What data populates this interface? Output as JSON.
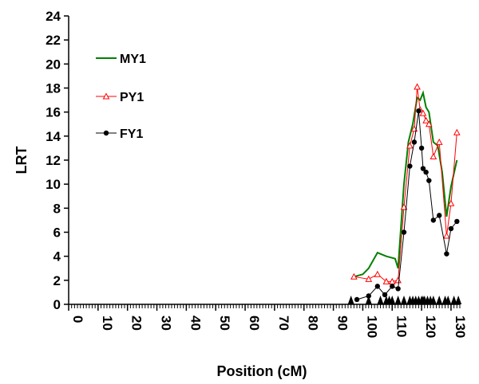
{
  "chart_data": {
    "type": "line",
    "title": "",
    "xlabel": "Position (cM)",
    "ylabel": "LRT",
    "xlim": [
      0,
      133
    ],
    "ylim": [
      0,
      24
    ],
    "x_ticks": [
      0,
      10,
      20,
      30,
      40,
      50,
      60,
      70,
      80,
      90,
      100,
      110,
      120,
      130
    ],
    "y_ticks": [
      0,
      2,
      4,
      6,
      8,
      10,
      12,
      14,
      16,
      18,
      20,
      22,
      24
    ],
    "grid": false,
    "legend_position": "upper-left",
    "series": [
      {
        "name": "MY1",
        "color": "#008000",
        "marker": "none",
        "x": [
          97,
          100,
          102,
          105,
          108,
          111,
          112,
          114,
          115.5,
          117,
          118.5,
          119.5,
          120.5,
          121.5,
          122.5,
          124,
          125.5,
          127,
          128.5,
          130,
          132
        ],
        "y": [
          2.3,
          2.5,
          3.0,
          4.3,
          4.0,
          3.8,
          3.0,
          10.0,
          13.5,
          15.0,
          17.2,
          17.0,
          17.6,
          16.4,
          16.0,
          13.5,
          13.2,
          11.0,
          7.3,
          9.8,
          12.0
        ]
      },
      {
        "name": "PY1",
        "color": "#ff0000",
        "marker": "triangle",
        "x": [
          97,
          102,
          105,
          108,
          110,
          112,
          114,
          116,
          117.5,
          118.5,
          119.5,
          120.5,
          121.5,
          122.5,
          124,
          126,
          128.5,
          130,
          132
        ],
        "y": [
          2.3,
          2.1,
          2.5,
          1.9,
          1.9,
          2.0,
          8.1,
          13.2,
          14.6,
          18.1,
          16.2,
          15.9,
          15.3,
          15.0,
          12.3,
          13.5,
          5.7,
          8.4,
          14.3
        ]
      },
      {
        "name": "FY1",
        "color": "#000000",
        "marker": "circle",
        "x": [
          98,
          102,
          105,
          107.5,
          110,
          112,
          114,
          116,
          117.5,
          119,
          120,
          120.5,
          121.5,
          122.5,
          124,
          126,
          128.5,
          130,
          132
        ],
        "y": [
          0.4,
          0.7,
          1.5,
          0.8,
          1.5,
          1.3,
          6.0,
          11.5,
          13.5,
          16.1,
          13.0,
          11.3,
          11.0,
          10.3,
          7.0,
          7.4,
          4.2,
          6.3,
          6.9
        ]
      }
    ],
    "markers": {
      "type": "black-triangle",
      "x": [
        96,
        102,
        106,
        108,
        109,
        110,
        112,
        114,
        116,
        117,
        118,
        119,
        120,
        120.5,
        121,
        122,
        123,
        124,
        126,
        128,
        129,
        131,
        132.5
      ]
    }
  }
}
